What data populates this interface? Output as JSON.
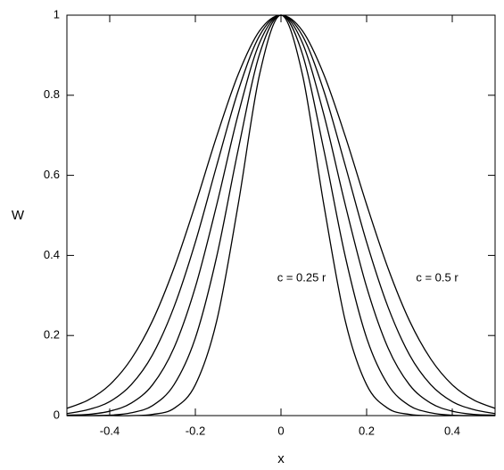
{
  "chart_data": {
    "type": "line",
    "x_label": "x",
    "y_label": "W",
    "annotations": [
      "c = 0.25 r",
      "c = 0.5 r"
    ],
    "x": [
      -0.5,
      -0.45,
      -0.4,
      -0.35,
      -0.3,
      -0.25,
      -0.2,
      -0.15,
      -0.1,
      -0.05,
      0,
      0.05,
      0.1,
      0.15,
      0.2,
      0.25,
      0.3,
      0.35,
      0.4,
      0.45,
      0.5
    ],
    "series": [
      {
        "color": "#000000",
        "values": [
          0,
          0,
          0,
          0,
          0.003,
          0.018,
          0.077,
          0.237,
          0.527,
          0.852,
          1,
          0.852,
          0.527,
          0.237,
          0.077,
          0.018,
          0.003,
          0,
          0,
          0,
          0
        ]
      },
      {
        "color": "#000000",
        "values": [
          0,
          0,
          0.001,
          0.007,
          0.025,
          0.077,
          0.194,
          0.398,
          0.664,
          0.903,
          1,
          0.903,
          0.664,
          0.398,
          0.194,
          0.077,
          0.025,
          0.007,
          0.001,
          0,
          0
        ]
      },
      {
        "color": "#000000",
        "values": [
          0.001,
          0.003,
          0.011,
          0.031,
          0.077,
          0.169,
          0.321,
          0.527,
          0.752,
          0.931,
          1,
          0.931,
          0.752,
          0.527,
          0.321,
          0.169,
          0.077,
          0.031,
          0.011,
          0.003,
          0.001
        ]
      },
      {
        "color": "#000000",
        "values": [
          0.005,
          0.015,
          0.035,
          0.077,
          0.152,
          0.271,
          0.433,
          0.625,
          0.811,
          0.949,
          1,
          0.949,
          0.811,
          0.625,
          0.433,
          0.271,
          0.152,
          0.077,
          0.035,
          0.015,
          0.005
        ]
      },
      {
        "color": "#000000",
        "values": [
          0.018,
          0.039,
          0.077,
          0.141,
          0.237,
          0.368,
          0.527,
          0.698,
          0.852,
          0.961,
          1,
          0.961,
          0.852,
          0.698,
          0.527,
          0.368,
          0.237,
          0.141,
          0.077,
          0.039,
          0.018
        ]
      }
    ],
    "xlim": [
      -0.5,
      0.5
    ],
    "xticks": [
      -0.4,
      -0.2,
      0,
      0.2,
      0.4
    ],
    "ylim": [
      0,
      1
    ],
    "yticks": [
      0,
      0.2,
      0.4,
      0.6,
      0.8,
      1
    ],
    "grid": false
  }
}
